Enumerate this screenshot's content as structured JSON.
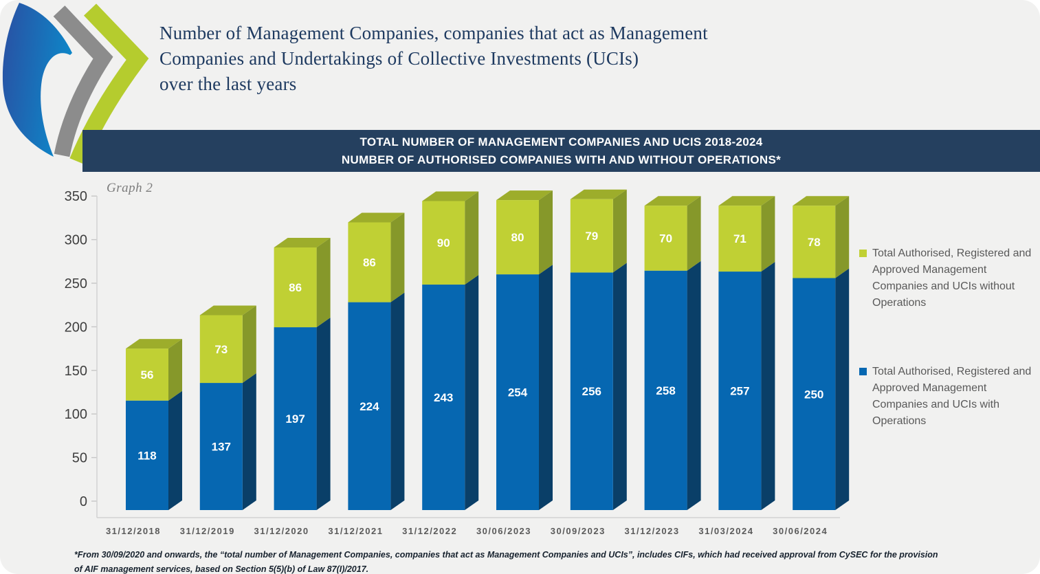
{
  "header": {
    "title_lines": [
      "Number of Management Companies, companies that act as Management",
      "Companies and Undertakings of Collective Investments (UCIs)",
      "over the last years"
    ],
    "banner_line1": "TOTAL NUMBER OF MANAGEMENT COMPANIES AND UCIS 2018-2024",
    "banner_line2": "NUMBER OF AUTHORISED COMPANIES WITH AND WITHOUT OPERATIONS*",
    "banner_bg": "#25405f"
  },
  "graph_label": "Graph 2",
  "chart_data": {
    "type": "bar",
    "stacked": true,
    "title": "TOTAL NUMBER OF MANAGEMENT COMPANIES AND UCIS 2018-2024 / NUMBER OF AUTHORISED COMPANIES WITH AND WITHOUT OPERATIONS*",
    "categories": [
      "31/12/2018",
      "31/12/2019",
      "31/12/2020",
      "31/12/2021",
      "31/12/2022",
      "30/06/2023",
      "30/09/2023",
      "31/12/2023",
      "31/03/2024",
      "30/06/2024"
    ],
    "series": [
      {
        "name": "Total Authorised, Registered and Approved Management Companies and UCIs with Operations",
        "color": "#0667b1",
        "values": [
          118,
          137,
          197,
          224,
          243,
          254,
          256,
          258,
          257,
          250
        ]
      },
      {
        "name": "Total Authorised, Registered and Approved Management Companies and UCIs without Operations",
        "color": "#c0d034",
        "values": [
          56,
          73,
          86,
          86,
          90,
          80,
          79,
          70,
          71,
          78
        ]
      }
    ],
    "ylim": [
      0,
      350
    ],
    "ytick_step": 50,
    "grid": false,
    "legend_position": "right",
    "colors": {
      "blue_front": "#0667b1",
      "blue_side": "#0a3f68",
      "green_front": "#c0d034",
      "green_side": "#86982a",
      "green_top": "#9dad2b",
      "axis_line": "#d2d2d2",
      "tick_line": "#c6c6c6",
      "tick_text": "#3f3f3f",
      "xlabel_text": "#5a5a5a",
      "value_text": "#ffffff"
    }
  },
  "legend": {
    "items": [
      {
        "color": "#c0d034",
        "label": "Total Authorised, Registered and Approved Management Companies and UCIs without Operations"
      },
      {
        "color": "#0667b1",
        "label": "Total Authorised, Registered and Approved Management Companies and UCIs with Operations"
      }
    ]
  },
  "footnote": {
    "line1": "*From 30/09/2020 and onwards, the “total number of Management Companies, companies that act as Management Companies and UCIs”, includes CIFs, which had received approval from CySEC for the provision",
    "line2": "of AIF management services, based on Section 5(5)(b) of Law 87(I)/2017."
  },
  "logo": {
    "blue_dark": "#2a4fa2",
    "blue_light": "#0e86c8",
    "gray": "#8c8c8c",
    "green": "#b5cc2e"
  }
}
